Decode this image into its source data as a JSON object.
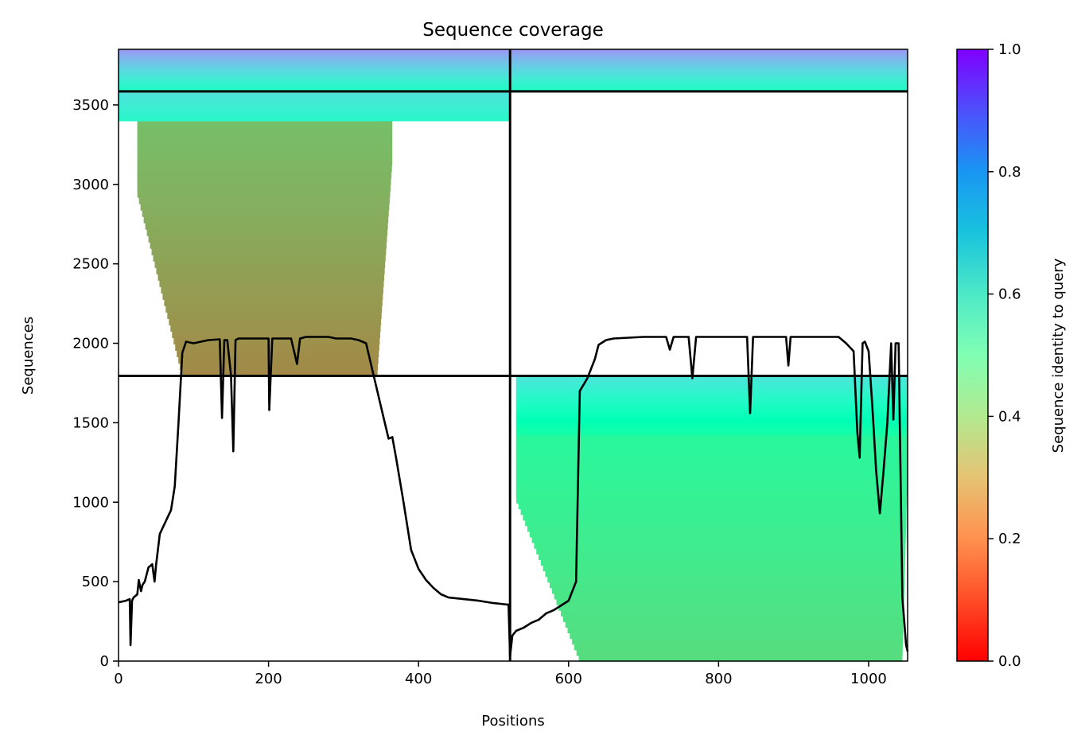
{
  "chart_data": {
    "type": "heatmap",
    "title": "Sequence coverage",
    "xlabel": "Positions",
    "ylabel": "Sequences",
    "xlim": [
      0,
      1052
    ],
    "ylim": [
      0,
      3850
    ],
    "xticks": [
      0,
      200,
      400,
      600,
      800,
      1000
    ],
    "yticks": [
      0,
      500,
      1000,
      1500,
      2000,
      2500,
      3000,
      3500
    ],
    "grid": false,
    "colorbar": {
      "label": "Sequence identity to query",
      "range": [
        0.0,
        1.0
      ],
      "ticks": [
        "0.0",
        "0.2",
        "0.4",
        "0.6",
        "0.8",
        "1.0"
      ],
      "colormap": "rainbow"
    },
    "domain_boundaries": {
      "x": [
        0,
        522,
        1052
      ],
      "y": [
        0,
        1795,
        3585,
        3850
      ]
    },
    "coverage_blocks": [
      {
        "x_range": [
          25,
          365
        ],
        "y_range": [
          1795,
          3400
        ],
        "identity_bottom": 0.18,
        "identity_top": 0.27,
        "x_range_bottom_core": [
          85,
          345
        ]
      },
      {
        "x_range": [
          0,
          522
        ],
        "y_range": [
          3400,
          3585
        ],
        "identity_bottom": 0.58,
        "identity_top": 0.66
      },
      {
        "x_range": [
          0,
          522
        ],
        "y_range": [
          3585,
          3850
        ],
        "identity_bottom": 0.55,
        "identity_top": 0.8
      },
      {
        "x_range": [
          522,
          1052
        ],
        "y_range": [
          3585,
          3850
        ],
        "identity_bottom": 0.55,
        "identity_top": 0.8
      },
      {
        "x_range": [
          530,
          1052
        ],
        "y_range": [
          0,
          1420
        ],
        "identity_bottom": 0.33,
        "identity_top": 0.42,
        "x_range_bottom_core": [
          615,
          1045
        ]
      },
      {
        "x_range": [
          530,
          1052
        ],
        "y_range": [
          1420,
          1795
        ],
        "identity_bottom": 0.45,
        "identity_top": 0.65
      }
    ],
    "series": [
      {
        "type": "line",
        "color": "#000000",
        "x": [
          0,
          10,
          15,
          16,
          18,
          20,
          25,
          27,
          30,
          32,
          35,
          40,
          45,
          48,
          50,
          55,
          60,
          65,
          70,
          75,
          80,
          85,
          90,
          100,
          110,
          120,
          135,
          138,
          141,
          145,
          150,
          153,
          156,
          160,
          170,
          180,
          200,
          201,
          205,
          230,
          238,
          242,
          250,
          280,
          290,
          300,
          310,
          320,
          330,
          340,
          350,
          360,
          365,
          370,
          380,
          390,
          400,
          410,
          420,
          430,
          440,
          460,
          480,
          500,
          520,
          522,
          525,
          530,
          540,
          550,
          560,
          570,
          580,
          590,
          600,
          610,
          615,
          625,
          635,
          640,
          650,
          660,
          700,
          730,
          735,
          740,
          760,
          765,
          770,
          800,
          838,
          842,
          846,
          890,
          893,
          896,
          910,
          930,
          960,
          970,
          980,
          985,
          988,
          992,
          995,
          1000,
          1005,
          1010,
          1015,
          1020,
          1025,
          1030,
          1033,
          1036,
          1040,
          1045,
          1050,
          1052
        ],
        "y": [
          370,
          380,
          390,
          100,
          380,
          400,
          420,
          510,
          440,
          480,
          500,
          590,
          610,
          500,
          600,
          800,
          850,
          900,
          950,
          1100,
          1500,
          1940,
          2010,
          2000,
          2010,
          2020,
          2025,
          1530,
          2020,
          2020,
          1800,
          1320,
          2020,
          2030,
          2030,
          2030,
          2030,
          1580,
          2030,
          2030,
          1870,
          2030,
          2040,
          2040,
          2030,
          2030,
          2030,
          2020,
          2000,
          1800,
          1600,
          1400,
          1410,
          1280,
          1000,
          700,
          580,
          510,
          460,
          420,
          400,
          390,
          380,
          365,
          355,
          30,
          160,
          190,
          210,
          240,
          260,
          300,
          320,
          350,
          380,
          500,
          1700,
          1780,
          1900,
          1990,
          2020,
          2030,
          2040,
          2040,
          1960,
          2040,
          2040,
          1780,
          2040,
          2040,
          2040,
          1560,
          2040,
          2040,
          1860,
          2040,
          2040,
          2040,
          2040,
          2000,
          1950,
          1440,
          1280,
          2000,
          2010,
          1950,
          1600,
          1200,
          930,
          1200,
          1500,
          2000,
          1520,
          2000,
          2000,
          400,
          100,
          60
        ]
      }
    ]
  }
}
